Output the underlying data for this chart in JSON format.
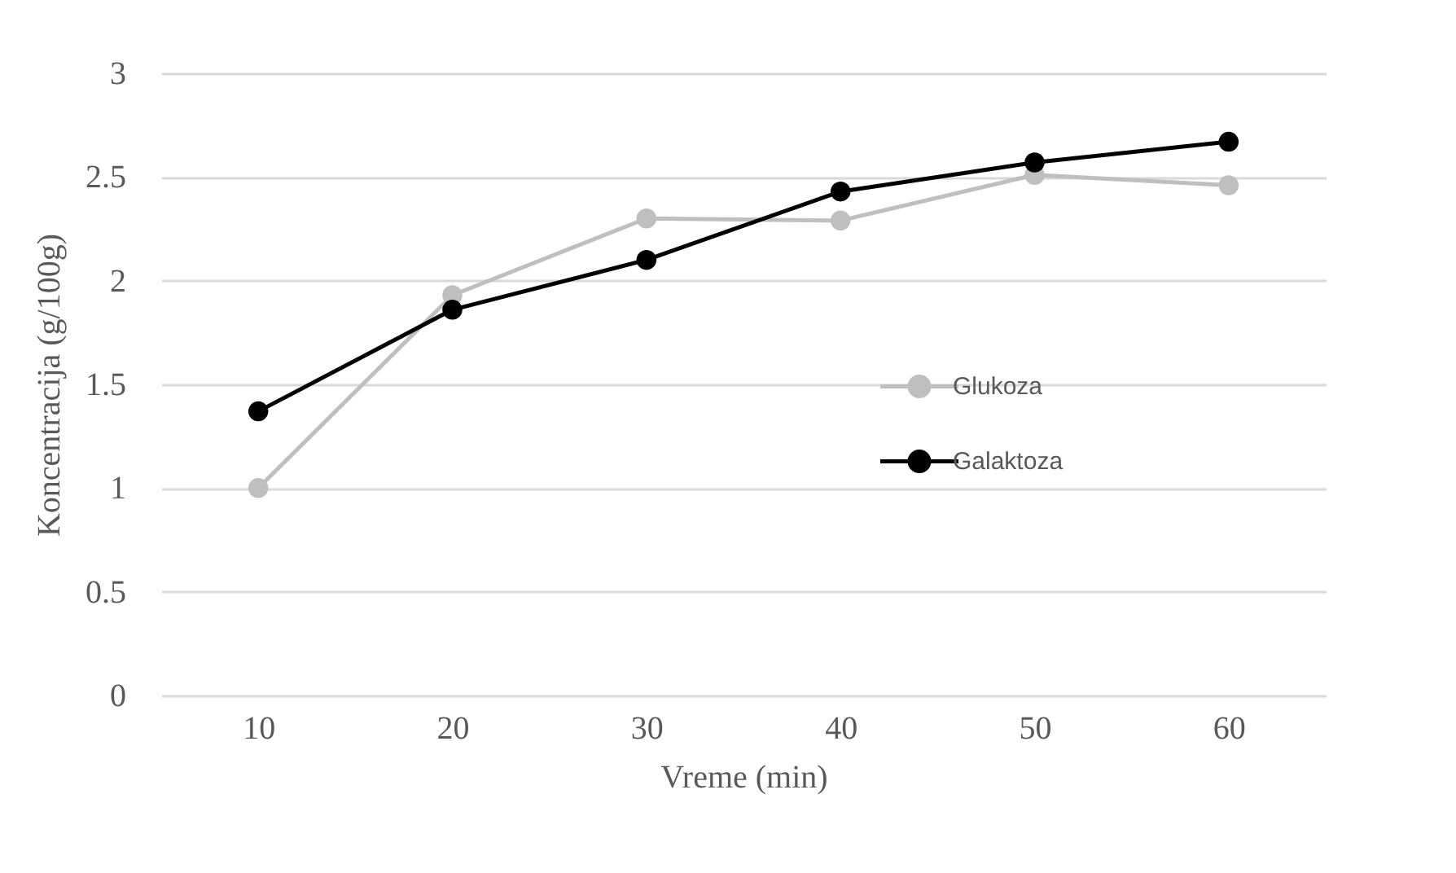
{
  "chart_data": {
    "type": "line",
    "xlabel": "Vreme (min)",
    "ylabel": "Koncentracija (g/100g)",
    "categories": [
      "10",
      "20",
      "30",
      "40",
      "50",
      "60"
    ],
    "series": [
      {
        "name": "Glukoza",
        "color": "#bfbfbf",
        "values": [
          1.0,
          1.93,
          2.3,
          2.29,
          2.51,
          2.46
        ]
      },
      {
        "name": "Galaktoza",
        "color": "#000000",
        "values": [
          1.37,
          1.86,
          2.1,
          2.43,
          2.57,
          2.67
        ]
      }
    ],
    "ylim": [
      0,
      3
    ],
    "yticks": [
      0,
      0.5,
      1,
      1.5,
      2,
      2.5,
      3
    ],
    "grid": "y",
    "legend": "right",
    "marker": "circle",
    "line_style": "solid"
  }
}
